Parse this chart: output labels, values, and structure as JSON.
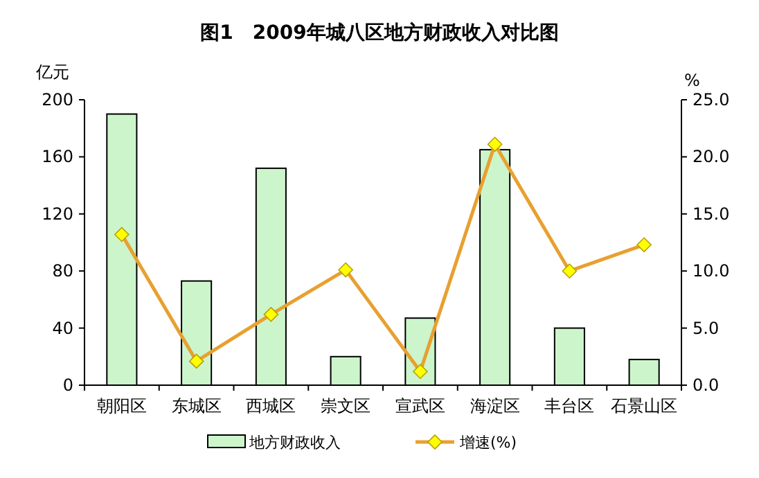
{
  "chart_data": {
    "type": "bar",
    "title": "图1　2009年城八区地方财政收入对比图",
    "ylabel": "亿元",
    "y2label": "%",
    "categories": [
      "朝阳区",
      "东城区",
      "西城区",
      "崇文区",
      "宣武区",
      "海淀区",
      "丰台区",
      "石景山区"
    ],
    "series": [
      {
        "name": "地方财政收入",
        "color": "#ccf5cc",
        "values": [
          190,
          73,
          152,
          20,
          47,
          165,
          40,
          18
        ]
      },
      {
        "name": "增速(%)",
        "type": "line",
        "axis": "y2",
        "color": "#e8a030",
        "marker": "diamond",
        "values": [
          13.2,
          2.1,
          6.2,
          10.1,
          1.2,
          21.1,
          10.0,
          12.3
        ]
      }
    ],
    "ylim": [
      0,
      200
    ],
    "yticks": [
      0,
      40,
      80,
      120,
      160,
      200
    ],
    "y2lim": [
      0,
      25
    ],
    "y2ticks": [
      {
        "value": 0,
        "label": "0.0"
      },
      {
        "value": 5,
        "label": "5.0"
      },
      {
        "value": 10,
        "label": "10.0"
      },
      {
        "value": 15,
        "label": "15.0"
      },
      {
        "value": 20,
        "label": "20.0"
      },
      {
        "value": 25,
        "label": "25.0"
      }
    ],
    "grid": false,
    "legend": "bottom"
  }
}
